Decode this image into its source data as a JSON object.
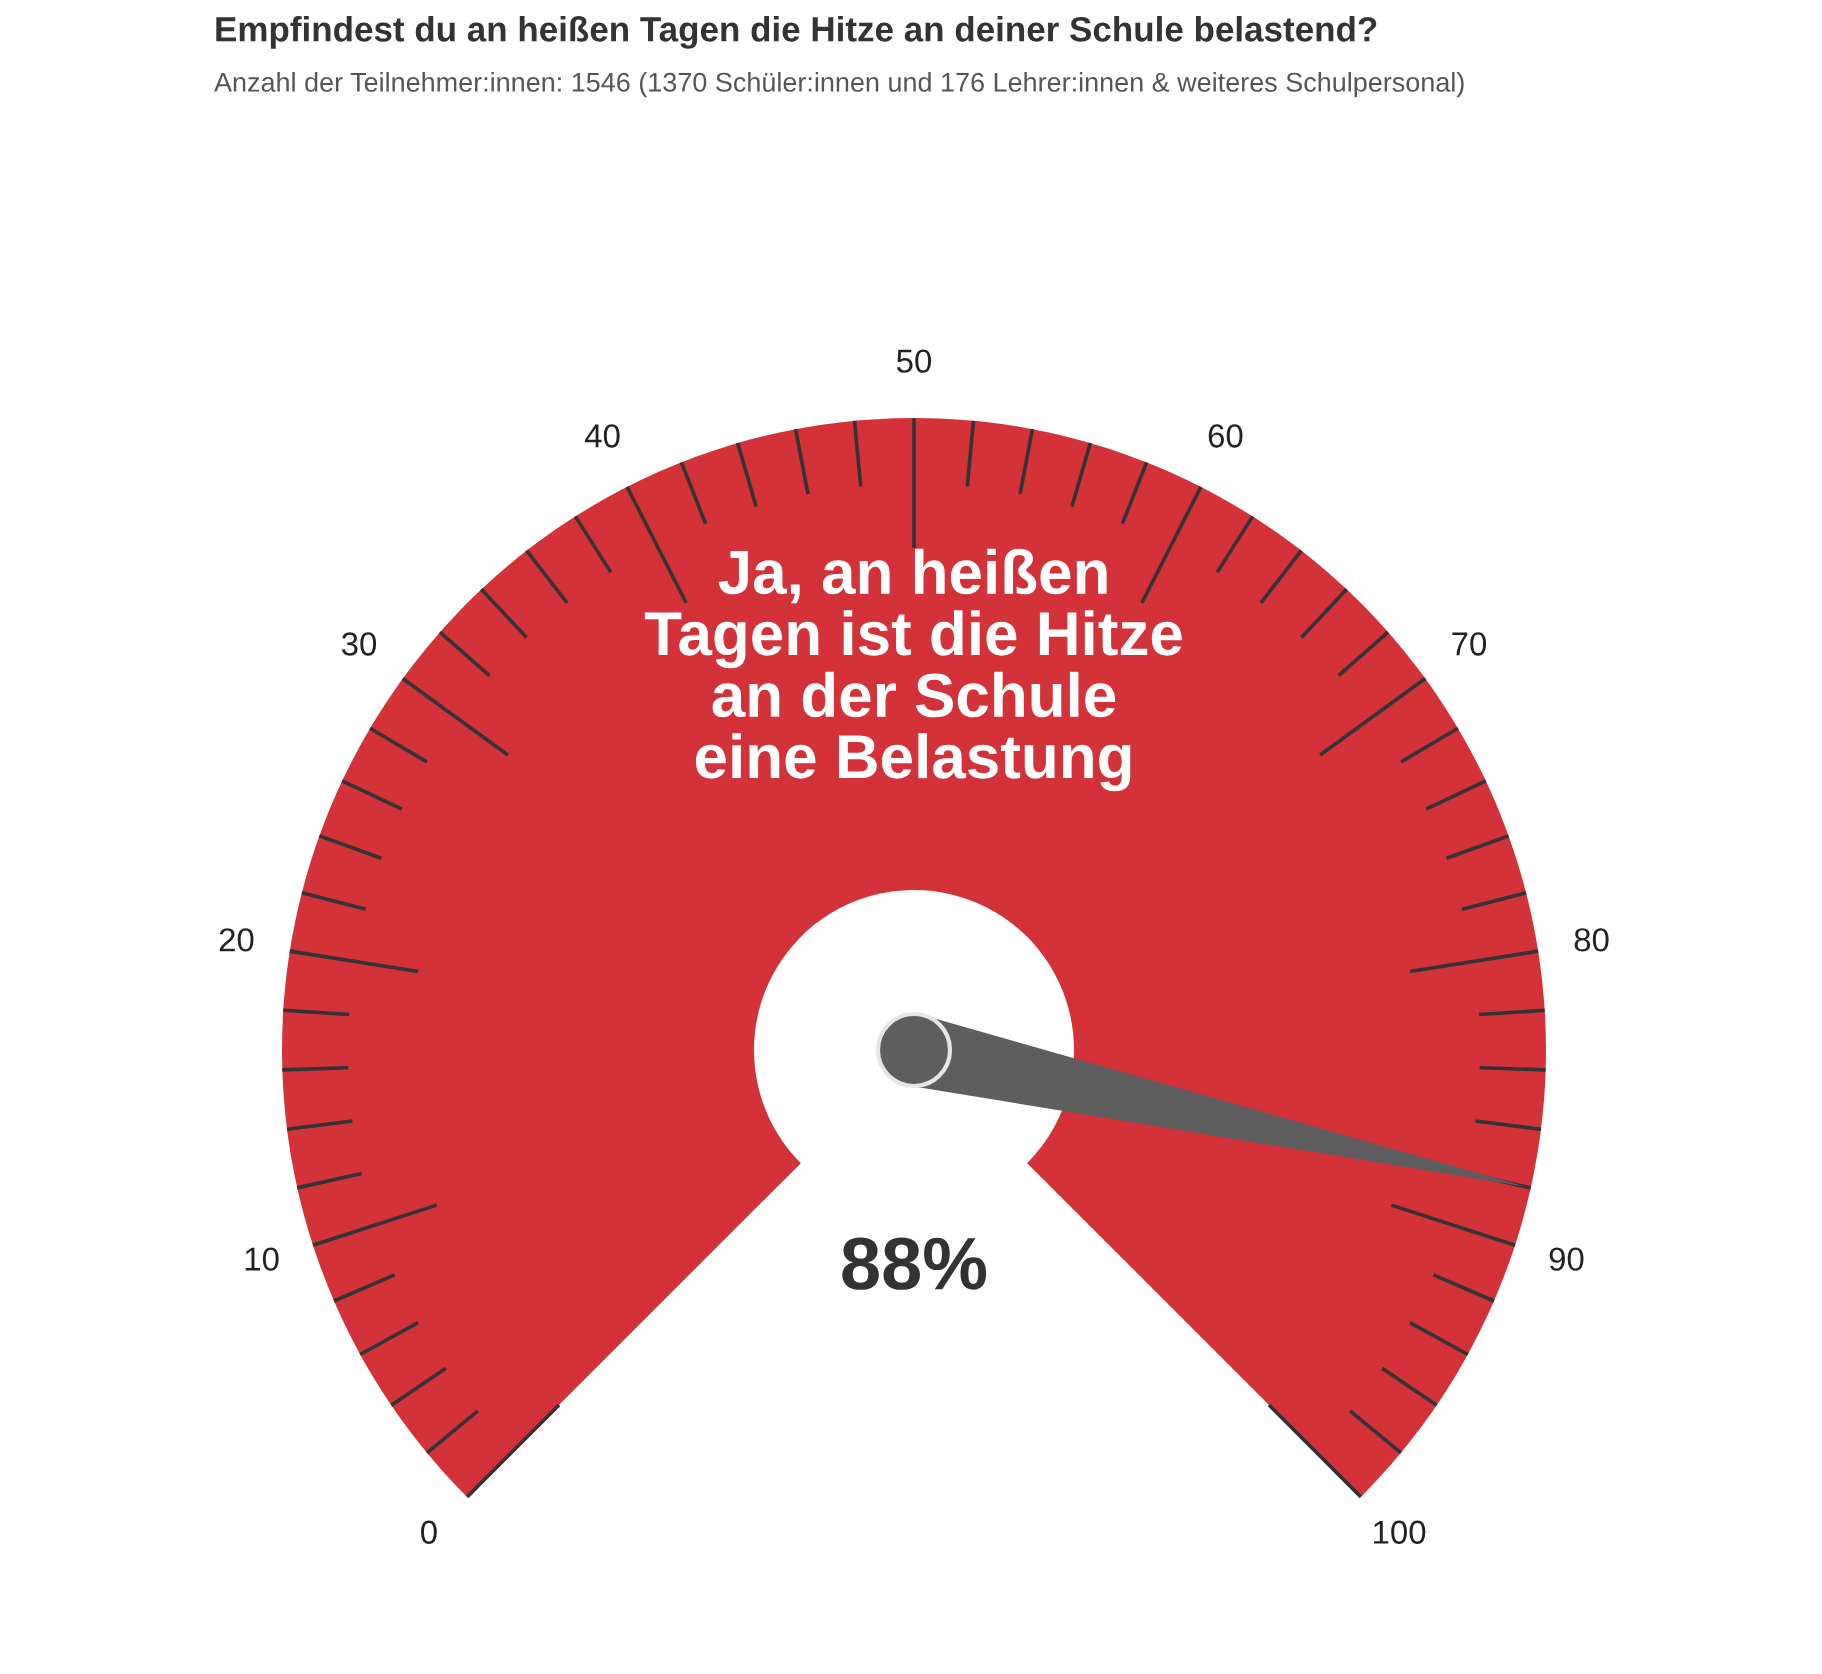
{
  "chart_data": {
    "type": "donut",
    "title": "Empfindest du an heißen Tagen die Hitze an deiner Schule belastend?",
    "subtitle": "Anzahl der Teilnehmer:innen: 1546 (1370 Schüler:innen und 176 Lehrer:innen & weiteres Schulpersonal)",
    "categories": [
      "Ja, an heißen Tagen ist die Hitze an der Schule eine Belastung",
      null
    ],
    "values": [
      88,
      12
    ],
    "colors": [
      "#d33338",
      "#d33338"
    ],
    "needle": "Ja, an heißen Tagen ist die Hitze an der Schule eine Belastung",
    "annotations": [
      "0",
      "10",
      "20",
      "30",
      "40",
      "50",
      "60",
      "70",
      "80",
      "90",
      "100",
      "88%"
    ]
  }
}
